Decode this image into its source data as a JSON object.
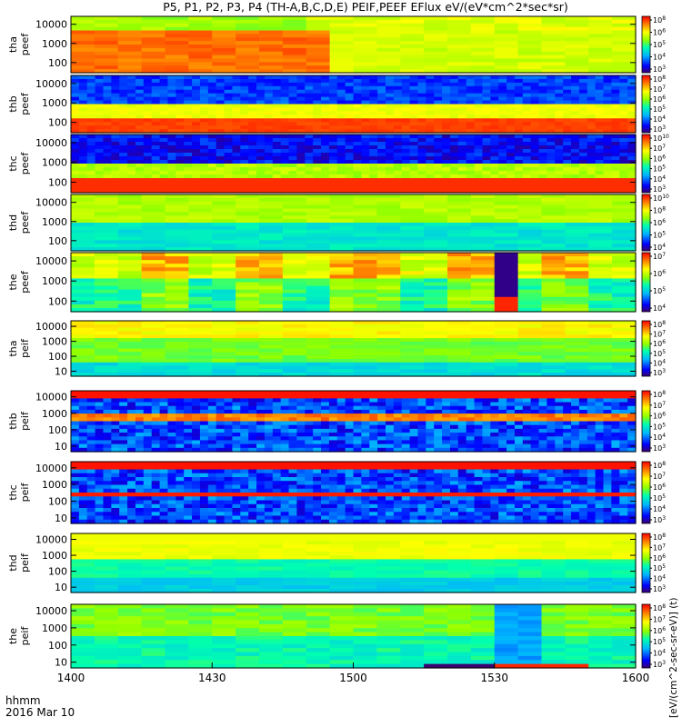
{
  "chart_data": {
    "type": "heatmap",
    "title": "P5, P1, P2, P3, P4 (TH-A,B,C,D,E) PEIF,PEEF EFlux eV/(eV*cm^2*sec*sr)",
    "x_axis": {
      "title_line1": "hhmm",
      "title_line2": "2016 Mar 10",
      "range_hhmm": [
        "1400",
        "1600"
      ],
      "tick_labels": [
        "1400",
        "1430",
        "1500",
        "1530",
        "1600"
      ]
    },
    "colorbar_label": "[eV/(cm^2-sec-sr-eV)] (t)",
    "panels": [
      {
        "label1": "tha",
        "label2": "peef",
        "yticks": [
          "10000",
          "1000",
          "100"
        ],
        "cbar_ticks": [
          "8",
          "6",
          "5",
          "4",
          "3"
        ],
        "pattern": "Red/orange low energy band, yellow/green high energy band"
      },
      {
        "label1": "thb",
        "label2": "peef",
        "yticks": [
          "10000",
          "1000",
          "100"
        ],
        "cbar_ticks": [
          "8",
          "7",
          "6",
          "5",
          "4",
          "3"
        ],
        "pattern": "Blue noisy high energy band, yellow band near 1000 eV, red base"
      },
      {
        "label1": "thc",
        "label2": "peef",
        "yticks": [
          "10000",
          "1000",
          "100"
        ],
        "cbar_ticks": [
          "10",
          "7",
          "6",
          "5",
          "4",
          "3"
        ],
        "pattern": "Blue/purple noisy top, yellow mid band, red/orange base"
      },
      {
        "label1": "thd",
        "label2": "peef",
        "yticks": [
          "10000",
          "1000",
          "100"
        ],
        "cbar_ticks": [
          "10",
          "8",
          "6",
          "5",
          "4"
        ],
        "pattern": "Green yellow top, cyan bottom"
      },
      {
        "label1": "the",
        "label2": "peef",
        "yticks": [
          "10000",
          "1000",
          "100"
        ],
        "cbar_ticks": [
          "7",
          "6",
          "5",
          "4"
        ],
        "pattern": "Blocky time segments; dark purple segment near 1525"
      },
      {
        "label1": "tha",
        "label2": "peif",
        "yticks": [
          "10000",
          "1000",
          "100",
          "10"
        ],
        "cbar_ticks": [
          "8",
          "7",
          "6",
          "5",
          "4",
          "3"
        ],
        "pattern": "Yellow top, green middle, cyan low"
      },
      {
        "label1": "thb",
        "label2": "peif",
        "yticks": [
          "10000",
          "1000",
          "100",
          "10"
        ],
        "cbar_ticks": [
          "8",
          "7",
          "6",
          "5",
          "4",
          "3"
        ],
        "pattern": "Blue/purple noise with bright band near 600 eV"
      },
      {
        "label1": "thc",
        "label2": "peif",
        "yticks": [
          "10000",
          "1000",
          "100",
          "10"
        ],
        "cbar_ticks": [
          "8",
          "7",
          "6",
          "5",
          "4",
          "3"
        ],
        "pattern": "Blue/purple noise with red band near 800 eV"
      },
      {
        "label1": "thd",
        "label2": "peif",
        "yticks": [
          "10000",
          "1000",
          "100",
          "10"
        ],
        "cbar_ticks": [
          "8",
          "7",
          "6",
          "5",
          "4",
          "3"
        ],
        "pattern": "Yellow/green top, cyan/blue low"
      },
      {
        "label1": "the",
        "label2": "peif",
        "yticks": [
          "10000",
          "1000",
          "100",
          "10"
        ],
        "cbar_ticks": [
          "8",
          "7",
          "6",
          "5",
          "4",
          "3"
        ],
        "pattern": "Green/cyan blocks; black and red segments near 1515–1540 at low energies"
      }
    ]
  }
}
